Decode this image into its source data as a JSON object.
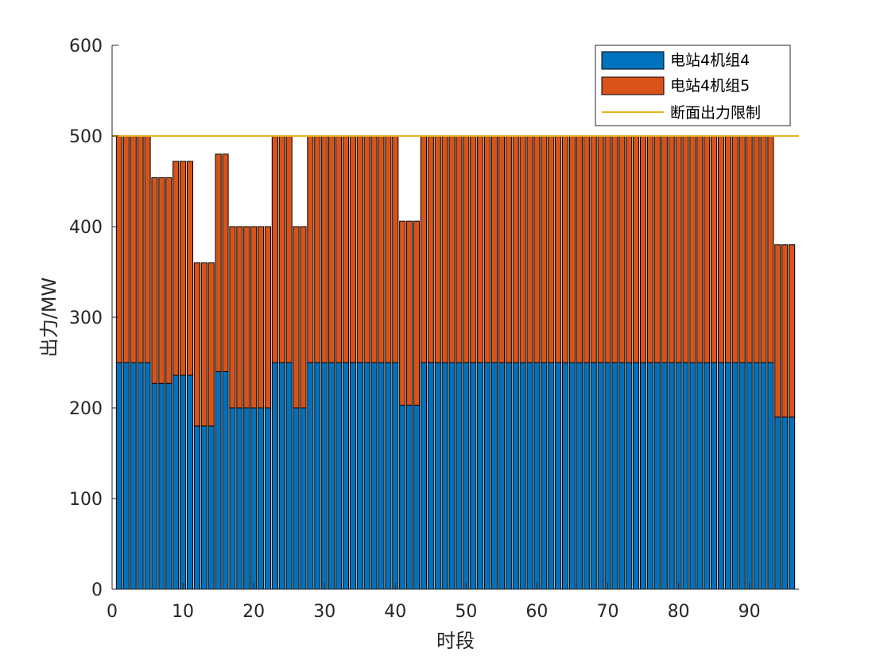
{
  "chart_data": {
    "type": "bar",
    "stacked": true,
    "xlabel": "时段",
    "ylabel": "出力/MW",
    "xlim": [
      0,
      97
    ],
    "ylim": [
      0,
      600
    ],
    "xticks": [
      0,
      10,
      20,
      30,
      40,
      50,
      60,
      70,
      80,
      90
    ],
    "yticks": [
      0,
      100,
      200,
      300,
      400,
      500,
      600
    ],
    "grid": false,
    "legend_position": "top-right",
    "x_start": 1,
    "series": [
      {
        "name": "电站4机组4",
        "color": "#0072BD",
        "values": [
          250,
          250,
          250,
          250,
          250,
          227,
          227,
          227,
          236,
          236,
          236,
          180,
          180,
          180,
          240,
          240,
          200,
          200,
          200,
          200,
          200,
          200,
          250,
          250,
          250,
          200,
          200,
          250,
          250,
          250,
          250,
          250,
          250,
          250,
          250,
          250,
          250,
          250,
          250,
          250,
          203,
          203,
          203,
          250,
          250,
          250,
          250,
          250,
          250,
          250,
          250,
          250,
          250,
          250,
          250,
          250,
          250,
          250,
          250,
          250,
          250,
          250,
          250,
          250,
          250,
          250,
          250,
          250,
          250,
          250,
          250,
          250,
          250,
          250,
          250,
          250,
          250,
          250,
          250,
          250,
          250,
          250,
          250,
          250,
          250,
          250,
          250,
          250,
          250,
          250,
          250,
          250,
          250,
          190,
          190,
          190
        ]
      },
      {
        "name": "电站4机组5",
        "color": "#D95319",
        "values": [
          250,
          250,
          250,
          250,
          250,
          227,
          227,
          227,
          236,
          236,
          236,
          180,
          180,
          180,
          240,
          240,
          200,
          200,
          200,
          200,
          200,
          200,
          250,
          250,
          250,
          200,
          200,
          250,
          250,
          250,
          250,
          250,
          250,
          250,
          250,
          250,
          250,
          250,
          250,
          250,
          203,
          203,
          203,
          250,
          250,
          250,
          250,
          250,
          250,
          250,
          250,
          250,
          250,
          250,
          250,
          250,
          250,
          250,
          250,
          250,
          250,
          250,
          250,
          250,
          250,
          250,
          250,
          250,
          250,
          250,
          250,
          250,
          250,
          250,
          250,
          250,
          250,
          250,
          250,
          250,
          250,
          250,
          250,
          250,
          250,
          250,
          250,
          250,
          250,
          250,
          250,
          250,
          250,
          190,
          190,
          190
        ]
      }
    ],
    "limit_line": {
      "name": "断面出力限制",
      "value": 500,
      "color": "#EDB120"
    }
  }
}
